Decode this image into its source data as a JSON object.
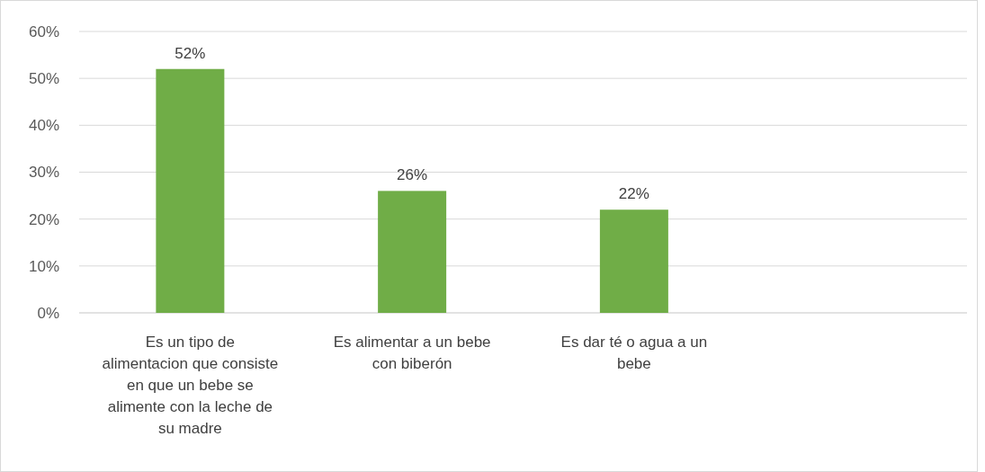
{
  "chart_data": {
    "type": "bar",
    "categories": [
      "Es un tipo de alimentacion que consiste en que un bebe se alimente con la leche de su madre",
      "Es alimentar a un bebe con biberón",
      "Es dar té o agua a un bebe",
      null
    ],
    "values": [
      52,
      26,
      22,
      null
    ],
    "value_labels": [
      "52%",
      "26%",
      "22%",
      null
    ],
    "color": "#70ad47",
    "ylim": [
      0,
      60
    ],
    "yticks": [
      {
        "value": 0,
        "label": "0%"
      },
      {
        "value": 10,
        "label": "10%"
      },
      {
        "value": 20,
        "label": "20%"
      },
      {
        "value": 30,
        "label": "30%"
      },
      {
        "value": 40,
        "label": "40%"
      },
      {
        "value": 50,
        "label": "50%"
      },
      {
        "value": 60,
        "label": "60%"
      }
    ],
    "grid": "y"
  }
}
